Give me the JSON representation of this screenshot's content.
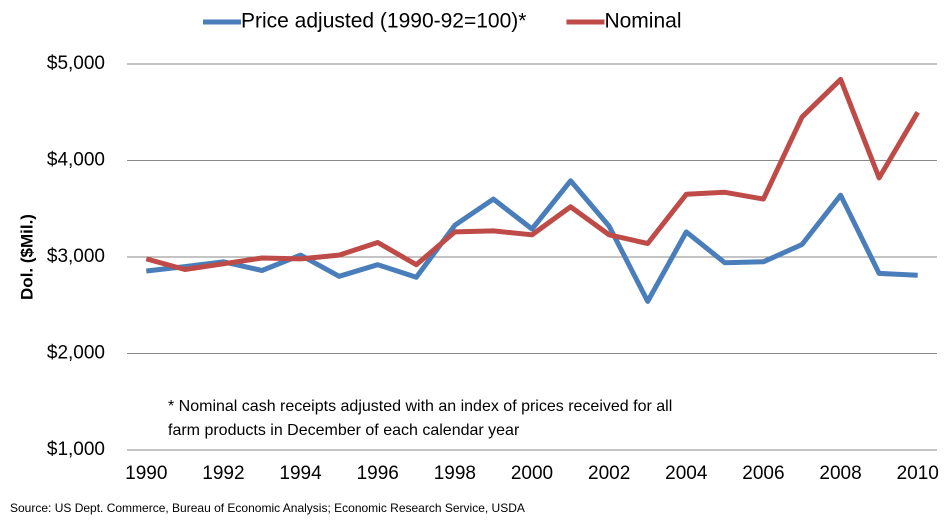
{
  "chart_data": {
    "type": "line",
    "y_label": "Dol. ($Mil.)",
    "annotation": [
      "* Nominal cash receipts adjusted with an index of prices received for all",
      "farm products in December of each calendar year"
    ],
    "source": "Source: US Dept. Commerce, Bureau of Economic Analysis; Economic Research Service, USDA",
    "x": [
      1990,
      1991,
      1992,
      1993,
      1994,
      1995,
      1996,
      1997,
      1998,
      1999,
      2000,
      2001,
      2002,
      2003,
      2004,
      2005,
      2006,
      2007,
      2008,
      2009,
      2010
    ],
    "series": [
      {
        "name": "Price adjusted (1990-92=100)*",
        "color": "#4a7ebb",
        "values": [
          2855,
          2900,
          2950,
          2860,
          3020,
          2800,
          2920,
          2790,
          3330,
          3600,
          3290,
          3790,
          3320,
          2540,
          3260,
          2940,
          2950,
          3130,
          3640,
          2830,
          2810
        ]
      },
      {
        "name": "Nominal",
        "color": "#be4b48",
        "values": [
          2980,
          2870,
          2930,
          2990,
          2980,
          3020,
          3150,
          2920,
          3260,
          3270,
          3230,
          3520,
          3230,
          3140,
          3650,
          3670,
          3600,
          4450,
          4840,
          3820,
          4500
        ]
      }
    ],
    "xlim": [
      1989.5,
      2010.5
    ],
    "xticks": [
      1990,
      1992,
      1994,
      1996,
      1998,
      2000,
      2002,
      2004,
      2006,
      2008,
      2010
    ],
    "ylim": [
      1000,
      5000
    ],
    "yticks": [
      {
        "value": 1000,
        "label": "$1,000"
      },
      {
        "value": 2000,
        "label": "$2,000"
      },
      {
        "value": 3000,
        "label": "$3,000"
      },
      {
        "value": 4000,
        "label": "$4,000"
      },
      {
        "value": 5000,
        "label": "$5,000"
      }
    ],
    "grid": true,
    "legend": "top"
  }
}
